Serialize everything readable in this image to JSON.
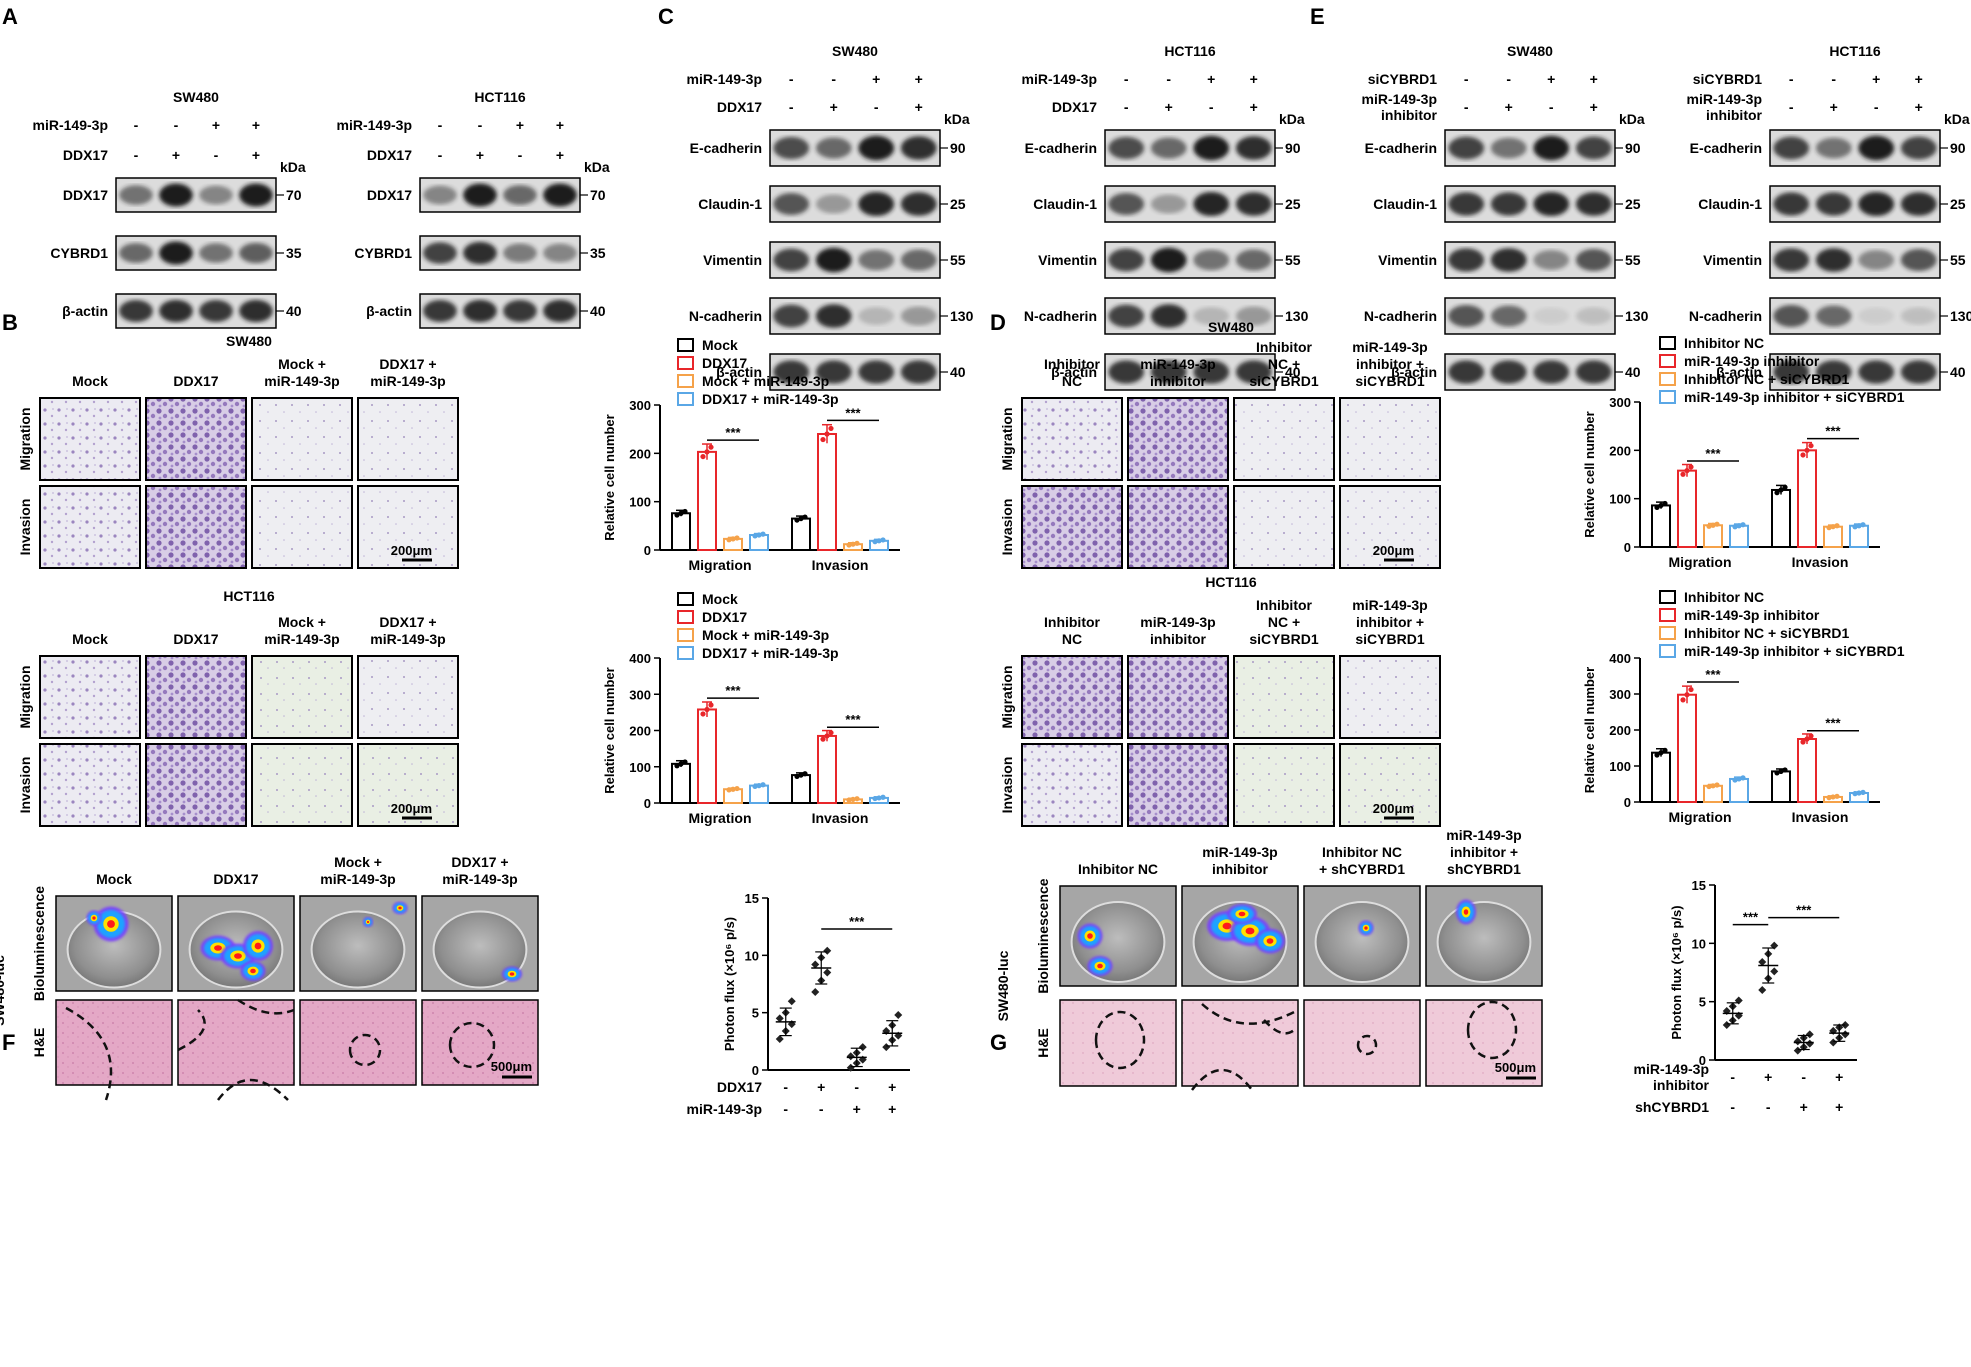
{
  "panels": {
    "A": "A",
    "B": "B",
    "C": "C",
    "D": "D",
    "E": "E",
    "F": "F",
    "G": "G"
  },
  "panelA": [
    {
      "cell": "SW480",
      "rows": [
        {
          "label": "miR-149-3p",
          "signs": [
            "-",
            "-",
            "+",
            "+"
          ]
        },
        {
          "label": "DDX17",
          "signs": [
            "-",
            "+",
            "-",
            "+"
          ]
        }
      ],
      "bands": [
        {
          "name": "DDX17",
          "kda": "70"
        },
        {
          "name": "CYBRD1",
          "kda": "35"
        },
        {
          "name": "β-actin",
          "kda": "40"
        }
      ],
      "kda": "kDa"
    },
    {
      "cell": "HCT116",
      "rows": [
        {
          "label": "miR-149-3p",
          "signs": [
            "-",
            "-",
            "+",
            "+"
          ]
        },
        {
          "label": "DDX17",
          "signs": [
            "-",
            "+",
            "-",
            "+"
          ]
        }
      ],
      "bands": [
        {
          "name": "DDX17",
          "kda": "70"
        },
        {
          "name": "CYBRD1",
          "kda": "35"
        },
        {
          "name": "β-actin",
          "kda": "40"
        }
      ],
      "kda": "kDa"
    }
  ],
  "panelC": [
    {
      "cell": "SW480",
      "rows": [
        {
          "label": "miR-149-3p",
          "signs": [
            "-",
            "-",
            "+",
            "+"
          ]
        },
        {
          "label": "DDX17",
          "signs": [
            "-",
            "+",
            "-",
            "+"
          ]
        }
      ],
      "bands": [
        {
          "name": "E-cadherin",
          "kda": "90"
        },
        {
          "name": "Claudin-1",
          "kda": "25"
        },
        {
          "name": "Vimentin",
          "kda": "55"
        },
        {
          "name": "N-cadherin",
          "kda": "130"
        },
        {
          "name": "β-actin",
          "kda": "40"
        }
      ],
      "kda": "kDa"
    },
    {
      "cell": "HCT116",
      "rows": [
        {
          "label": "miR-149-3p",
          "signs": [
            "-",
            "-",
            "+",
            "+"
          ]
        },
        {
          "label": "DDX17",
          "signs": [
            "-",
            "+",
            "-",
            "+"
          ]
        }
      ],
      "bands": [
        {
          "name": "E-cadherin",
          "kda": "90"
        },
        {
          "name": "Claudin-1",
          "kda": "25"
        },
        {
          "name": "Vimentin",
          "kda": "55"
        },
        {
          "name": "N-cadherin",
          "kda": "130"
        },
        {
          "name": "β-actin",
          "kda": "40"
        }
      ],
      "kda": "kDa"
    }
  ],
  "panelE": [
    {
      "cell": "SW480",
      "rows": [
        {
          "label": "siCYBRD1",
          "signs": [
            "-",
            "-",
            "+",
            "+"
          ]
        },
        {
          "label": "miR-149-3p",
          "label2": "inhibitor",
          "signs": [
            "-",
            "+",
            "-",
            "+"
          ]
        }
      ],
      "bands": [
        {
          "name": "E-cadherin",
          "kda": "90"
        },
        {
          "name": "Claudin-1",
          "kda": "25"
        },
        {
          "name": "Vimentin",
          "kda": "55"
        },
        {
          "name": "N-cadherin",
          "kda": "130"
        },
        {
          "name": "β-actin",
          "kda": "40"
        }
      ],
      "kda": "kDa"
    },
    {
      "cell": "HCT116",
      "rows": [
        {
          "label": "siCYBRD1",
          "signs": [
            "-",
            "-",
            "+",
            "+"
          ]
        },
        {
          "label": "miR-149-3p",
          "label2": "inhibitor",
          "signs": [
            "-",
            "+",
            "-",
            "+"
          ]
        }
      ],
      "bands": [
        {
          "name": "E-cadherin",
          "kda": "90"
        },
        {
          "name": "Claudin-1",
          "kda": "25"
        },
        {
          "name": "Vimentin",
          "kda": "55"
        },
        {
          "name": "N-cadherin",
          "kda": "130"
        },
        {
          "name": "β-actin",
          "kda": "40"
        }
      ],
      "kda": "kDa"
    }
  ],
  "panelB": [
    {
      "cell": "SW480",
      "cols": [
        [
          "Mock"
        ],
        [
          "DDX17"
        ],
        [
          "Mock +",
          "miR-149-3p"
        ],
        [
          "DDX17 +",
          "miR-149-3p"
        ]
      ],
      "rows": [
        "Migration",
        "Invasion"
      ],
      "scale": "200μm"
    },
    {
      "cell": "HCT116",
      "cols": [
        [
          "Mock"
        ],
        [
          "DDX17"
        ],
        [
          "Mock +",
          "miR-149-3p"
        ],
        [
          "DDX17 +",
          "miR-149-3p"
        ]
      ],
      "rows": [
        "Migration",
        "Invasion"
      ],
      "scale": "200μm"
    }
  ],
  "panelD": [
    {
      "cell": "SW480",
      "cols": [
        [
          "Inhibitor",
          "NC"
        ],
        [
          "miR-149-3p",
          "inhibitor"
        ],
        [
          "Inhibitor",
          "NC +",
          "siCYBRD1"
        ],
        [
          "miR-149-3p",
          "inhibitor +",
          "siCYBRD1"
        ]
      ],
      "rows": [
        "Migration",
        "Invasion"
      ],
      "scale": "200μm"
    },
    {
      "cell": "HCT116",
      "cols": [
        [
          "Inhibitor",
          "NC"
        ],
        [
          "miR-149-3p",
          "inhibitor"
        ],
        [
          "Inhibitor",
          "NC +",
          "siCYBRD1"
        ],
        [
          "miR-149-3p",
          "inhibitor +",
          "siCYBRD1"
        ]
      ],
      "rows": [
        "Migration",
        "Invasion"
      ],
      "scale": "200μm"
    }
  ],
  "panelF": {
    "cols": [
      [
        "Mock"
      ],
      [
        "DDX17"
      ],
      [
        "Mock +",
        "miR-149-3p"
      ],
      [
        "DDX17 +",
        "miR-149-3p"
      ]
    ],
    "rows": [
      "Bioluminescence",
      "H&E"
    ],
    "side": "SW480-luc",
    "scale": "500μm"
  },
  "panelG": {
    "cols": [
      [
        "Inhibitor NC"
      ],
      [
        "miR-149-3p",
        "inhibitor"
      ],
      [
        "Inhibitor NC",
        "+ shCYBRD1"
      ],
      [
        "miR-149-3p",
        "inhibitor +",
        "shCYBRD1"
      ]
    ],
    "rows": [
      "Bioluminescence",
      "H&E"
    ],
    "side": "SW480-luc",
    "scale": "500μm"
  },
  "colors": {
    "black": "#000000",
    "red": "#e8262a",
    "orange": "#f5a24a",
    "blue": "#5aa7e6"
  },
  "chart_data": [
    {
      "type": "bar",
      "id": "B-SW480",
      "ylabel": "Relative cell number",
      "ylim": [
        0,
        300
      ],
      "yticks": [
        0,
        100,
        200,
        300
      ],
      "categories": [
        "Migration",
        "Invasion"
      ],
      "series": [
        {
          "name": "Mock",
          "values": [
            76,
            65
          ]
        },
        {
          "name": "DDX17",
          "values": [
            203,
            240
          ]
        },
        {
          "name": "Mock + miR-149-3p",
          "values": [
            23,
            12
          ]
        },
        {
          "name": "DDX17 + miR-149-3p",
          "values": [
            31,
            19
          ]
        }
      ],
      "sig": [
        {
          "cat": 0,
          "from": 1,
          "to": 3,
          "text": "***"
        },
        {
          "cat": 1,
          "from": 1,
          "to": 3,
          "text": "***"
        }
      ]
    },
    {
      "type": "bar",
      "id": "B-HCT116",
      "ylabel": "Relative cell number",
      "ylim": [
        0,
        400
      ],
      "yticks": [
        0,
        100,
        200,
        300,
        400
      ],
      "categories": [
        "Migration",
        "Invasion"
      ],
      "series": [
        {
          "name": "Mock",
          "values": [
            108,
            77
          ]
        },
        {
          "name": "DDX17",
          "values": [
            258,
            185
          ]
        },
        {
          "name": "Mock + miR-149-3p",
          "values": [
            38,
            10
          ]
        },
        {
          "name": "DDX17 + miR-149-3p",
          "values": [
            48,
            14
          ]
        }
      ],
      "sig": [
        {
          "cat": 0,
          "from": 1,
          "to": 3,
          "text": "***"
        },
        {
          "cat": 1,
          "from": 1,
          "to": 3,
          "text": "***"
        }
      ]
    },
    {
      "type": "bar",
      "id": "D-SW480",
      "ylabel": "Relative cell number",
      "ylim": [
        0,
        300
      ],
      "yticks": [
        0,
        100,
        200,
        300
      ],
      "categories": [
        "Migration",
        "Invasion"
      ],
      "series": [
        {
          "name": "Inhibitor NC",
          "values": [
            86,
            118
          ]
        },
        {
          "name": "miR-149-3p inhibitor",
          "values": [
            158,
            200
          ]
        },
        {
          "name": "Inhibitor NC + siCYBRD1",
          "values": [
            45,
            42
          ]
        },
        {
          "name": "miR-149-3p inhibitor + siCYBRD1",
          "values": [
            44,
            44
          ]
        }
      ],
      "sig": [
        {
          "cat": 0,
          "from": 1,
          "to": 3,
          "text": "***"
        },
        {
          "cat": 1,
          "from": 1,
          "to": 3,
          "text": "***"
        }
      ]
    },
    {
      "type": "bar",
      "id": "D-HCT116",
      "ylabel": "Relative cell number",
      "ylim": [
        0,
        400
      ],
      "yticks": [
        0,
        100,
        200,
        300,
        400
      ],
      "categories": [
        "Migration",
        "Invasion"
      ],
      "series": [
        {
          "name": "Inhibitor NC",
          "values": [
            137,
            85
          ]
        },
        {
          "name": "miR-149-3p inhibitor",
          "values": [
            298,
            175
          ]
        },
        {
          "name": "Inhibitor NC + siCYBRD1",
          "values": [
            45,
            14
          ]
        },
        {
          "name": "miR-149-3p inhibitor + siCYBRD1",
          "values": [
            64,
            25
          ]
        }
      ],
      "sig": [
        {
          "cat": 0,
          "from": 1,
          "to": 3,
          "text": "***"
        },
        {
          "cat": 1,
          "from": 1,
          "to": 3,
          "text": "***"
        }
      ]
    },
    {
      "type": "scatter",
      "id": "F",
      "ylabel": "Photon flux (×10⁶ p/s)",
      "ylim": [
        0,
        15
      ],
      "yticks": [
        0,
        5,
        10,
        15
      ],
      "groups": [
        {
          "mean": 4.2,
          "sd": 1.2,
          "points": [
            2.7,
            3.4,
            4.0,
            4.5,
            5.0,
            6.0
          ]
        },
        {
          "mean": 8.9,
          "sd": 1.4,
          "points": [
            6.8,
            7.8,
            8.5,
            9.2,
            9.8,
            10.4
          ]
        },
        {
          "mean": 1.1,
          "sd": 0.8,
          "points": [
            0.2,
            0.6,
            0.9,
            1.2,
            1.5,
            2.0
          ]
        },
        {
          "mean": 3.2,
          "sd": 1.1,
          "points": [
            2.0,
            2.6,
            3.0,
            3.4,
            3.9,
            4.8
          ]
        }
      ],
      "xrows": [
        {
          "label": "DDX17",
          "signs": [
            "-",
            "+",
            "-",
            "+"
          ]
        },
        {
          "label": "miR-149-3p",
          "signs": [
            "-",
            "-",
            "+",
            "+"
          ]
        }
      ],
      "sig": [
        {
          "from": 1,
          "to": 3,
          "text": "***"
        }
      ]
    },
    {
      "type": "scatter",
      "id": "G",
      "ylabel": "Photon flux (×10⁶ p/s)",
      "ylim": [
        0,
        15
      ],
      "yticks": [
        0,
        5,
        10,
        15
      ],
      "groups": [
        {
          "mean": 4.0,
          "sd": 0.9,
          "points": [
            3.0,
            3.4,
            3.8,
            4.2,
            4.6,
            5.1
          ]
        },
        {
          "mean": 8.1,
          "sd": 1.5,
          "points": [
            6.0,
            7.0,
            7.6,
            8.4,
            9.1,
            9.8
          ]
        },
        {
          "mean": 1.5,
          "sd": 0.6,
          "points": [
            0.8,
            1.1,
            1.4,
            1.6,
            1.9,
            2.2
          ]
        },
        {
          "mean": 2.3,
          "sd": 0.7,
          "points": [
            1.5,
            1.9,
            2.2,
            2.5,
            2.8,
            3.0
          ]
        }
      ],
      "xrows": [
        {
          "label": "miR-149-3p",
          "label2": "inhibitor",
          "signs": [
            "-",
            "+",
            "-",
            "+"
          ]
        },
        {
          "label": "shCYBRD1",
          "signs": [
            "-",
            "-",
            "+",
            "+"
          ]
        }
      ],
      "sig": [
        {
          "from": 0,
          "to": 1,
          "text": "***"
        },
        {
          "from": 1,
          "to": 3,
          "text": "***"
        }
      ]
    }
  ]
}
